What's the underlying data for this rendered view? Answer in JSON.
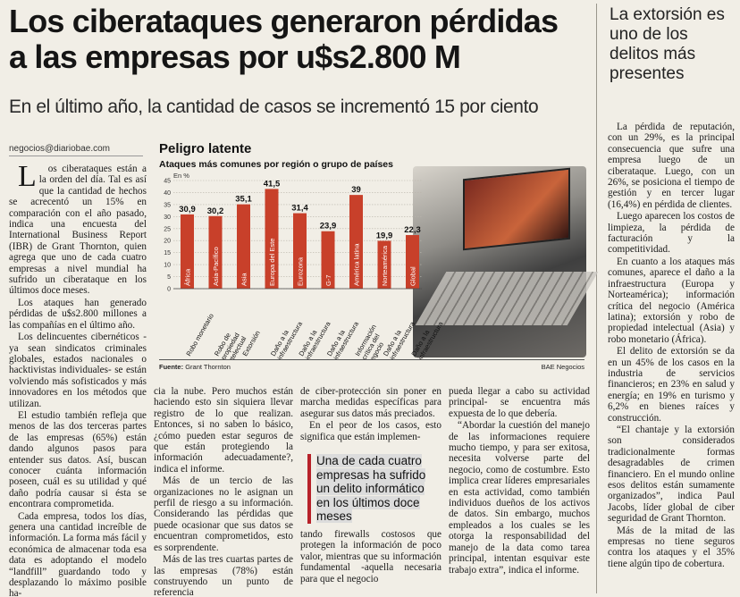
{
  "headline": {
    "line1": "Los ciberataques generaron pérdidas",
    "line2": "a las empresas por u$s2.800 M"
  },
  "subhead": "En el último año, la cantidad de casos se incrementó 15 por ciento",
  "byline": "negocios@diariobae.com",
  "sidebar_headline": "La extorsión es uno de los delitos más presentes",
  "col1": [
    "Los ciberataques están a la orden del día. Tal es así que la cantidad de hechos se acrecentó un 15% en comparación con el año pasado, indica una encuesta del International Business Report (IBR) de Grant Thornton, quien agrega que uno de cada cuatro empresas a nivel mundial ha sufrido un ciberataque en los últimos doce meses.",
    "Los ataques han generado pérdidas de u$s2.800 millones a las compañías en el último año.",
    "Los delincuentes cibernéticos -ya sean sindicatos criminales globales, estados nacionales o hacktivistas individuales- se están volviendo más sofisticados y más innovadores en los métodos que utilizan.",
    "El estudio también refleja que menos de las dos terceras partes de las empresas (65%) están dando algunos pasos para entender sus datos. Así, buscan conocer cuánta información poseen, cuál es su utilidad y qué daño podría causar si ésta se encontrara comprometida.",
    "Cada empresa, todos los días, genera una cantidad increíble de información. La forma más fácil y económica de almacenar toda esa data es adoptando el modelo “landfill” guardando todo y desplazando lo máximo posible ha-"
  ],
  "col2": [
    "cia la nube. Pero muchos están haciendo esto sin siquiera llevar registro de lo que realizan. Entonces, si no saben lo básico, ¿cómo pueden estar seguros de que están protegiendo la información adecuadamente?, indica el informe.",
    "Más de un tercio de las organizaciones no le asignan un perfil de riesgo a su información. Considerando las pérdidas que puede ocasionar que sus datos se encuentran comprometidos, esto es sorprendente.",
    "Más de las tres cuartas partes de las empresas (78%) están construyendo un punto de referencia"
  ],
  "col3": [
    "de ciber-protección sin poner en marcha medidas específicas para asegurar sus datos más preciados.",
    "En el peor de los casos, esto significa que están implemen-"
  ],
  "col3_bottom": "tando firewalls costosos que protegen la información de poco valor, mientras que su información fundamental -aquella necesaria para que el negocio",
  "pullquote": "Una de cada cuatro empresas ha sufrido un delito informático en los últimos doce meses",
  "col4": [
    "pueda llegar a cabo su actividad principal- se encuentra más expuesta de lo que debería.",
    "“Abordar la cuestión del manejo de las informaciones requiere mucho tiempo, y para ser exitosa, necesita volverse parte del negocio, como de costumbre. Esto implica crear líderes empresariales en esta actividad, como también individuos dueños de los activos de datos. Sin embargo, muchos empleados a los cuales se les otorga la responsabilidad del manejo de la data como tarea principal, intentan esquivar este trabajo extra”, indica el informe."
  ],
  "col5": [
    "La pérdida de reputación, con un 29%, es la principal consecuencia que sufre una empresa luego de un ciberataque. Luego, con un 26%, se posiciona el tiempo de gestión y en tercer lugar (16,4%) en pérdida de clientes.",
    "Luego aparecen los costos de limpieza, la pérdida de facturación y la competitividad.",
    "En cuanto a los ataques más comunes, aparece el daño a la infraestructura (Europa y Norteamérica); información crítica del negocio (América latina); extorsión y robo de propiedad intelectual (Asia) y robo monetario (África).",
    "El delito de extorsión se da en un 45% de los casos en la industria de servicios financieros; en 23% en salud y energía; en 19% en turismo y 6,2% en bienes raíces y construcción.",
    "“El chantaje y la extorsión son considerados tradicionalmente formas desagradables de crimen financiero. En el mundo online esos delitos están sumamente organizados”, indica Paul Jacobs, líder global de ciber seguridad de Grant Thornton.",
    "Más de la mitad de las empresas no tiene seguros contra los ataques y el 35% tiene algún tipo de cobertura."
  ],
  "chart_data": {
    "type": "bar",
    "title": "Peligro latente",
    "subtitle": "Ataques más comunes por región o grupo de países",
    "unit": "En %",
    "categories": [
      "África",
      "Asia-Pacífico",
      "Asia",
      "Europa del Este",
      "Eurozona",
      "G-7",
      "América latina",
      "Norteamérica",
      "Global"
    ],
    "attack_labels": [
      "Robo monetario",
      "Robo de propiedad intelectual",
      "Extorsión",
      "Daño a la infraestructura",
      "Daño a la infraestructura",
      "Daño a la infraestructura",
      "Información crítica del negocio",
      "Daño a la infraestructura",
      "Daño a la infraestructura"
    ],
    "values": [
      30.9,
      30.2,
      35.1,
      41.5,
      31.4,
      23.9,
      39,
      19.9,
      22.3
    ],
    "value_labels": [
      "30,9",
      "30,2",
      "35,1",
      "41,5",
      "31,4",
      "23,9",
      "39",
      "19,9",
      "22,3"
    ],
    "yticks": [
      0,
      5,
      10,
      15,
      20,
      25,
      30,
      35,
      40,
      45
    ],
    "ylim": [
      0,
      45
    ],
    "grid": true,
    "bar_color": "#c8402a",
    "source_label": "Fuente:",
    "source": "Grant Thornton",
    "credit": "BAE Negocios"
  }
}
